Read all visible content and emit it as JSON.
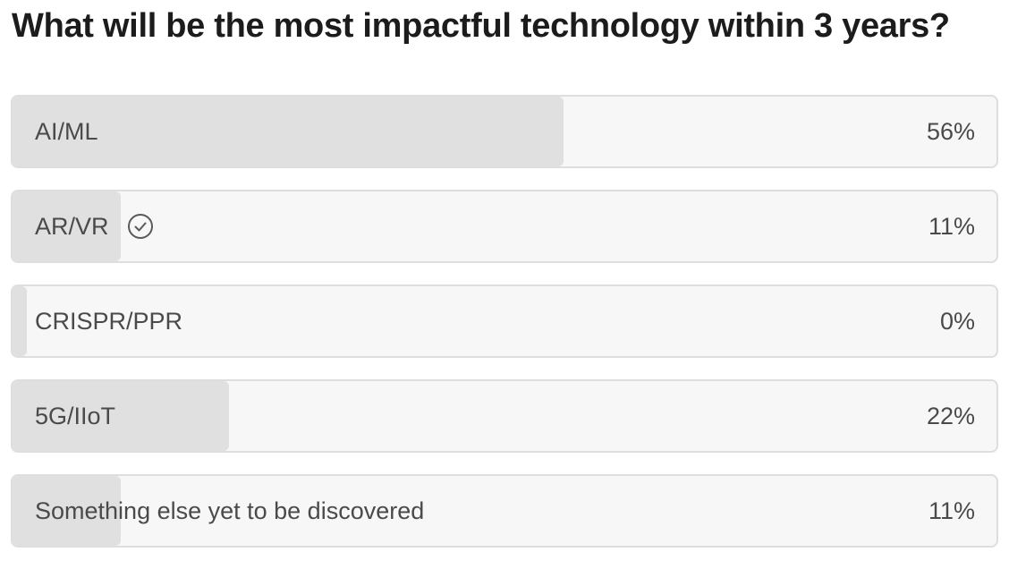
{
  "poll": {
    "question": "What will be the most impactful technology within 3 years?",
    "options": [
      {
        "label": "AI/ML",
        "percent_text": "56%",
        "percent": 56,
        "selected": false
      },
      {
        "label": "AR/VR",
        "percent_text": "11%",
        "percent": 11,
        "selected": true
      },
      {
        "label": "CRISPR/PPR",
        "percent_text": "0%",
        "percent": 0,
        "selected": false
      },
      {
        "label": "5G/IIoT",
        "percent_text": "22%",
        "percent": 22,
        "selected": false
      },
      {
        "label": "Something else yet to be discovered",
        "percent_text": "11%",
        "percent": 11,
        "selected": false
      }
    ],
    "selected_icon": "check-circle-icon"
  },
  "colors": {
    "bar_fill": "#e0e0e0",
    "bar_track": "#f7f7f7",
    "border": "#dedede",
    "text": "#4a4a4a",
    "title": "#1c1c1c"
  }
}
